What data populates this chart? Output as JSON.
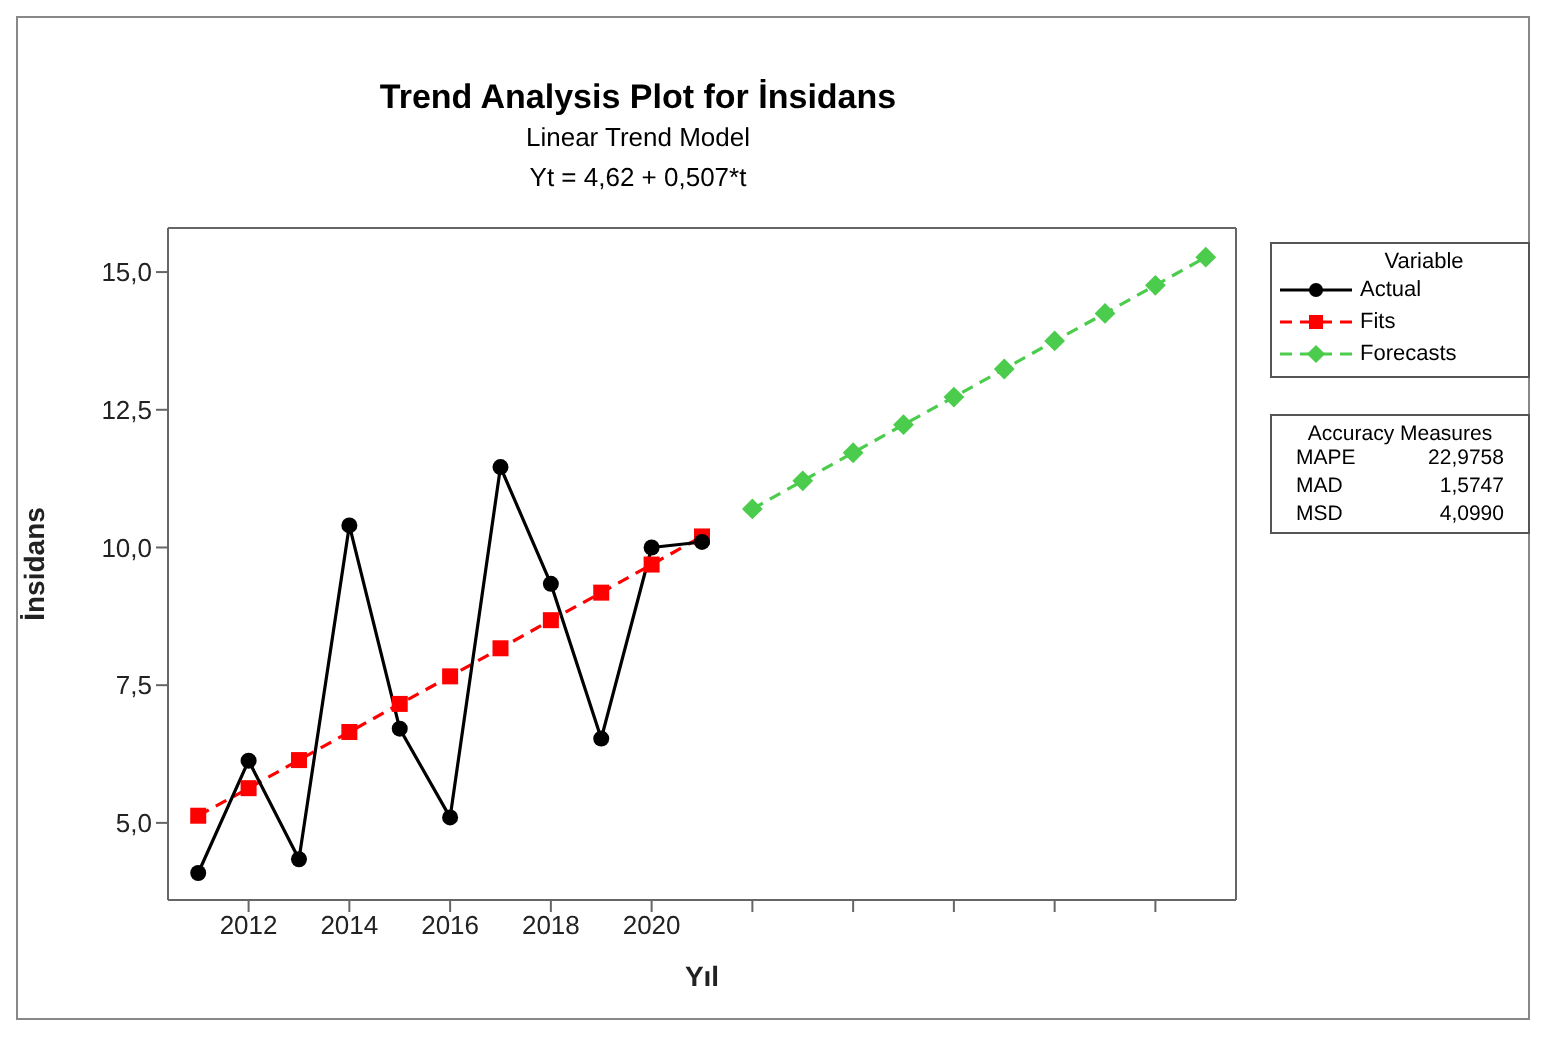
{
  "chart_data": {
    "type": "line",
    "title": "Trend Analysis Plot for İnsidans",
    "subtitle": "Linear Trend Model\nYt = 4,62 + 0,507*t",
    "xlabel": "Yıl",
    "ylabel": "İnsidans",
    "legend_title": "Variable",
    "legend": "right",
    "x": [
      2011,
      2012,
      2013,
      2014,
      2015,
      2016,
      2017,
      2018,
      2019,
      2020,
      2021
    ],
    "series": [
      {
        "name": "Actual",
        "color": "#000000",
        "marker": "circle",
        "line_style": "solid",
        "values": [
          4.09,
          6.13,
          4.34,
          10.4,
          6.71,
          5.1,
          11.46,
          9.34,
          6.53,
          10.0,
          10.1
        ]
      },
      {
        "name": "Fits",
        "color": "#ff0000",
        "marker": "square",
        "line_style": "dashed",
        "values": [
          5.13,
          5.63,
          6.14,
          6.65,
          7.16,
          7.66,
          8.17,
          8.68,
          9.18,
          9.69,
          10.2
        ]
      },
      {
        "name": "Forecasts",
        "color": "#4ccc4c",
        "marker": "diamond",
        "line_style": "dashed",
        "x": [
          2022,
          2023,
          2024,
          2025,
          2026,
          2027,
          2028,
          2029,
          2030,
          2031
        ],
        "values": [
          10.7,
          11.21,
          11.72,
          12.23,
          12.73,
          13.24,
          13.75,
          14.25,
          14.76,
          15.27
        ]
      }
    ],
    "xlim": [
      2010.4,
      2031.6
    ],
    "xticks": [
      2012,
      2014,
      2016,
      2018,
      2020,
      {
        "value": 2022,
        "label": null
      },
      {
        "value": 2024,
        "label": null
      },
      {
        "value": 2026,
        "label": null
      },
      {
        "value": 2028,
        "label": null
      },
      {
        "value": 2030,
        "label": null
      }
    ],
    "ylim": [
      3.6,
      15.8
    ],
    "yticks": [
      {
        "value": 5,
        "label": "5,0"
      },
      {
        "value": 7.5,
        "label": "7,5"
      },
      {
        "value": 10,
        "label": "10,0"
      },
      {
        "value": 12.5,
        "label": "12,5"
      },
      {
        "value": 15,
        "label": "15,0"
      }
    ],
    "grid": false,
    "annotations": [
      "Accuracy Measures",
      "MAPE",
      "22,9758",
      "MAD",
      "1,5747",
      "MSD",
      "4,0990"
    ]
  }
}
